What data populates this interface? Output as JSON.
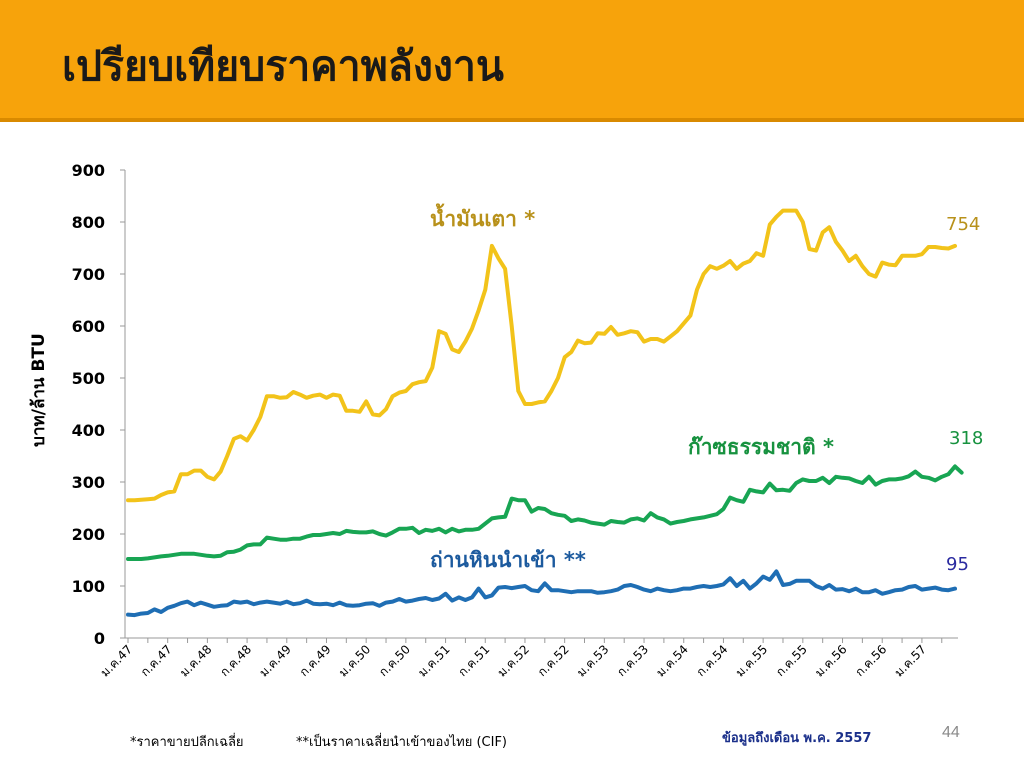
{
  "slide": {
    "title": "เปรียบเทียบราคาพลังงาน",
    "footnote_1": "*ราคาขายปลีกเฉลี่ย",
    "footnote_2": "**เป็นราคาเฉลี่ยนำเข้าของไทย (CIF)",
    "source_note": "ข้อมูลถึงเดือน  พ.ค.  2557",
    "page_number": "44"
  },
  "colors": {
    "header_bg": "#f7a30b",
    "fuel_oil": "#f2c31a",
    "fuel_oil_label": "#b8911a",
    "natural_gas": "#18a553",
    "natural_gas_label": "#17923f",
    "coal": "#1f6eb4",
    "coal_label": "#1c5a9e",
    "coal_end_label": "#2a2aa0"
  },
  "chart_data": {
    "type": "line",
    "ylabel": "บาท/ล้าน BTU",
    "ylim": [
      0,
      900
    ],
    "yticks": [
      0,
      100,
      200,
      300,
      400,
      500,
      600,
      700,
      800,
      900
    ],
    "grid": false,
    "x_tick_labels": [
      "ม.ค.47",
      "ก.ค.47",
      "ม.ค.48",
      "ก.ค.48",
      "ม.ค.49",
      "ก.ค.49",
      "ม.ค.50",
      "ก.ค.50",
      "ม.ค.51",
      "ก.ค.51",
      "ม.ค.52",
      "ก.ค.52",
      "ม.ค.53",
      "ก.ค.53",
      "ม.ค.54",
      "ก.ค.54",
      "ม.ค.55",
      "ก.ค.55",
      "ม.ค.56",
      "ก.ค.56",
      "ม.ค.57"
    ],
    "x_tick_month_index": [
      0,
      6,
      12,
      18,
      24,
      30,
      36,
      42,
      48,
      54,
      60,
      66,
      72,
      78,
      84,
      90,
      96,
      102,
      108,
      114,
      120
    ],
    "series": [
      {
        "name": "น้ำมันเตา *",
        "end_label": "754",
        "values": [
          265,
          265,
          266,
          267,
          268,
          275,
          280,
          282,
          315,
          315,
          322,
          322,
          310,
          305,
          320,
          350,
          383,
          388,
          380,
          400,
          425,
          465,
          465,
          462,
          463,
          473,
          468,
          462,
          466,
          468,
          462,
          468,
          466,
          437,
          437,
          435,
          455,
          430,
          428,
          440,
          465,
          472,
          475,
          488,
          492,
          494,
          520,
          590,
          585,
          555,
          550,
          570,
          595,
          630,
          670,
          754,
          730,
          710,
          600,
          475,
          450,
          450,
          453,
          455,
          475,
          500,
          540,
          550,
          572,
          567,
          568,
          586,
          585,
          598,
          583,
          586,
          590,
          588,
          570,
          575,
          575,
          570,
          580,
          590,
          605,
          620,
          670,
          700,
          715,
          710,
          716,
          725,
          710,
          720,
          725,
          740,
          735,
          795,
          810,
          822,
          822,
          822,
          800,
          748,
          745,
          780,
          790,
          762,
          745,
          725,
          735,
          715,
          700,
          695,
          722,
          718,
          717,
          735,
          735,
          735,
          738,
          752,
          752,
          750,
          749,
          754
        ]
      },
      {
        "name": "ก๊าซธรรมชาติ *",
        "end_label": "318",
        "values": [
          152,
          152,
          152,
          153,
          155,
          157,
          158,
          160,
          162,
          162,
          162,
          160,
          158,
          157,
          158,
          165,
          166,
          170,
          178,
          180,
          180,
          193,
          191,
          189,
          189,
          191,
          191,
          195,
          198,
          198,
          200,
          202,
          200,
          206,
          204,
          203,
          203,
          205,
          200,
          197,
          203,
          210,
          210,
          212,
          202,
          208,
          206,
          210,
          203,
          210,
          205,
          208,
          208,
          210,
          220,
          230,
          232,
          233,
          268,
          265,
          265,
          243,
          250,
          248,
          240,
          237,
          235,
          225,
          228,
          226,
          222,
          220,
          218,
          225,
          223,
          222,
          228,
          230,
          226,
          240,
          232,
          228,
          220,
          223,
          225,
          228,
          230,
          232,
          235,
          238,
          248,
          270,
          265,
          262,
          285,
          282,
          280,
          297,
          284,
          285,
          283,
          298,
          305,
          302,
          302,
          308,
          298,
          310,
          308,
          307,
          302,
          298,
          310,
          295,
          302,
          305,
          305,
          307,
          311,
          320,
          310,
          308,
          303,
          310,
          315,
          330,
          318
        ]
      },
      {
        "name": "ถ่านหินนำเข้า **",
        "end_label": "95",
        "values": [
          45,
          44,
          47,
          48,
          55,
          50,
          58,
          62,
          67,
          70,
          63,
          68,
          64,
          60,
          62,
          63,
          70,
          68,
          70,
          65,
          68,
          70,
          68,
          66,
          70,
          65,
          67,
          72,
          66,
          65,
          66,
          63,
          68,
          63,
          62,
          63,
          66,
          67,
          62,
          68,
          70,
          75,
          70,
          72,
          75,
          77,
          73,
          76,
          85,
          72,
          78,
          73,
          78,
          95,
          78,
          82,
          97,
          98,
          96,
          98,
          100,
          92,
          90,
          105,
          92,
          92,
          90,
          88,
          90,
          90,
          90,
          87,
          88,
          90,
          93,
          100,
          102,
          98,
          93,
          90,
          95,
          92,
          90,
          92,
          95,
          95,
          98,
          100,
          98,
          100,
          103,
          115,
          100,
          110,
          95,
          105,
          118,
          112,
          128,
          102,
          104,
          110,
          110,
          110,
          100,
          95,
          102,
          93,
          94,
          90,
          95,
          88,
          88,
          92,
          85,
          88,
          92,
          93,
          98,
          100,
          93,
          95,
          97,
          93,
          92,
          95
        ]
      }
    ]
  }
}
